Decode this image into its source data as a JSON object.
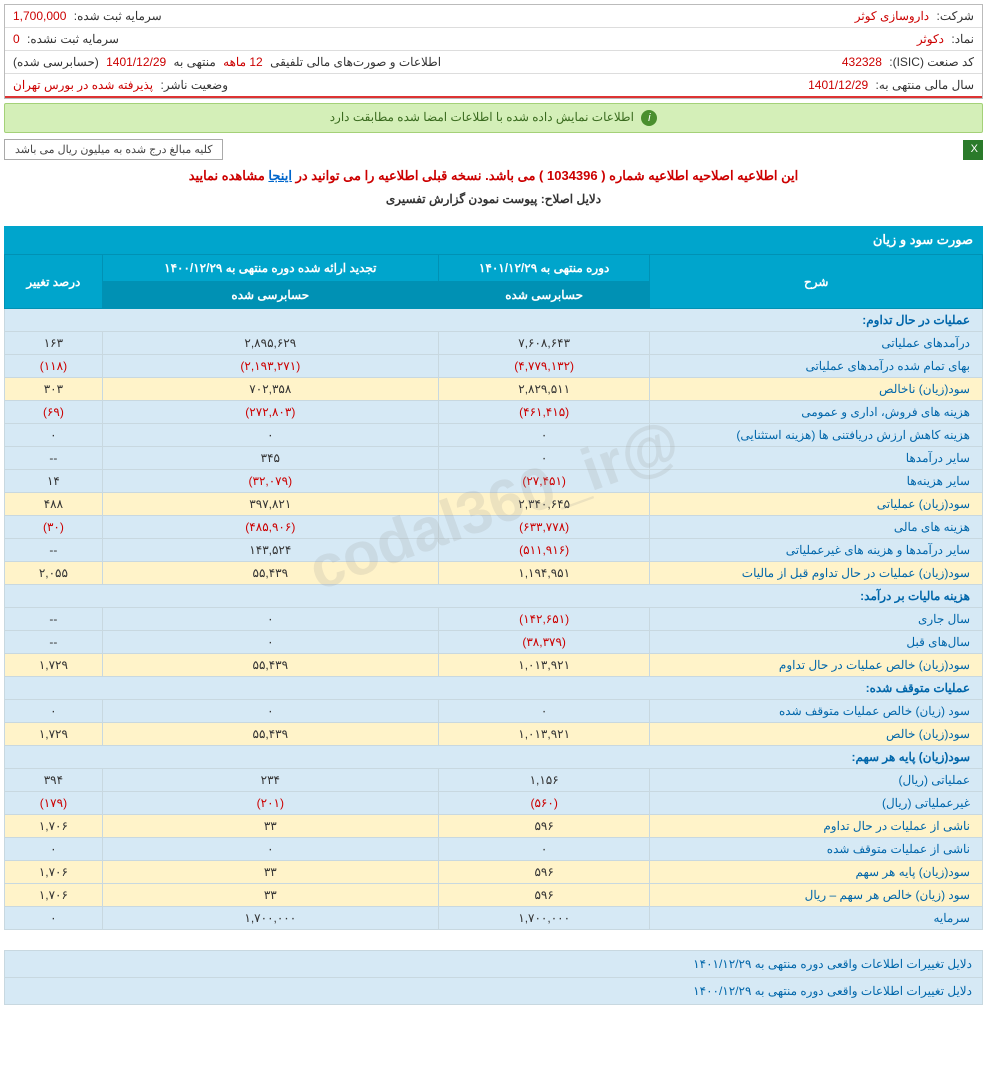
{
  "header": {
    "company_label": "شرکت:",
    "company_value": "داروسازی کوثر",
    "capital_reg_label": "سرمایه ثبت شده:",
    "capital_reg_value": "1,700,000",
    "symbol_label": "نماد:",
    "symbol_value": "دکوثر",
    "capital_unreg_label": "سرمایه ثبت نشده:",
    "capital_unreg_value": "0",
    "isic_label": "کد صنعت (ISIC):",
    "isic_value": "432328",
    "report_label": "اطلاعات و صورت‌های مالی تلفیقی",
    "report_period": "12 ماهه",
    "report_ending": "منتهی به",
    "report_date": "1401/12/29",
    "report_audit": "(حسابرسی شده)",
    "fiscal_label": "سال مالی منتهی به:",
    "fiscal_value": "1401/12/29",
    "status_label": "وضعیت ناشر:",
    "status_value": "پذیرفته شده در بورس تهران"
  },
  "banner": "اطلاعات نمایش داده شده با اطلاعات امضا شده مطابقت دارد",
  "note": "کلیه مبالغ درج شده به میلیون ریال می باشد",
  "notice": {
    "text1": "این اطلاعیه اصلاحیه اطلاعیه شماره ( 1034396 ) می باشد. نسخه قبلی اطلاعیه را می توانید در",
    "link": "اینجا",
    "text2": "مشاهده نمایید"
  },
  "sub_notice": "دلایل اصلاح: پیوست نمودن گزارش تفسیری",
  "watermark": "@codal360_ir",
  "section_title": "صورت سود و زیان",
  "columns": {
    "desc": "شرح",
    "current": "دوره منتهی به ۱۴۰۱/۱۲/۲۹",
    "prior": "تجدید ارائه شده دوره منتهی به ۱۴۰۰/۱۲/۲۹",
    "change": "درصد تغییر",
    "audited": "حسابرسی شده"
  },
  "rows": [
    {
      "type": "header",
      "desc": "عملیات در حال تداوم:"
    },
    {
      "type": "blue",
      "desc": "درآمدهای عملیاتی",
      "current": "۷,۶۰۸,۶۴۳",
      "prior": "۲,۸۹۵,۶۲۹",
      "change": "۱۶۳"
    },
    {
      "type": "blue",
      "desc": "بهای تمام شده درآمدهای عملیاتی",
      "current": "(۴,۷۷۹,۱۳۲)",
      "current_neg": true,
      "prior": "(۲,۱۹۳,۲۷۱)",
      "prior_neg": true,
      "change": "(۱۱۸)",
      "change_neg": true
    },
    {
      "type": "yellow",
      "desc": "سود(زیان) ناخالص",
      "current": "۲,۸۲۹,۵۱۱",
      "prior": "۷۰۲,۳۵۸",
      "change": "۳۰۳"
    },
    {
      "type": "blue",
      "desc": "هزینه های فروش، اداری و عمومی",
      "current": "(۴۶۱,۴۱۵)",
      "current_neg": true,
      "prior": "(۲۷۲,۸۰۳)",
      "prior_neg": true,
      "change": "(۶۹)",
      "change_neg": true
    },
    {
      "type": "blue",
      "desc": "هزینه کاهش ارزش دریافتنی ها (هزینه استثنایی)",
      "current": "۰",
      "prior": "۰",
      "change": "۰"
    },
    {
      "type": "blue",
      "desc": "سایر درآمدها",
      "current": "۰",
      "prior": "۳۴۵",
      "change": "--"
    },
    {
      "type": "blue",
      "desc": "سایر هزینه‌ها",
      "current": "(۲۷,۴۵۱)",
      "current_neg": true,
      "prior": "(۳۲,۰۷۹)",
      "prior_neg": true,
      "change": "۱۴"
    },
    {
      "type": "yellow",
      "desc": "سود(زیان) عملیاتی",
      "current": "۲,۳۴۰,۶۴۵",
      "prior": "۳۹۷,۸۲۱",
      "change": "۴۸۸"
    },
    {
      "type": "blue",
      "desc": "هزینه های مالی",
      "current": "(۶۳۳,۷۷۸)",
      "current_neg": true,
      "prior": "(۴۸۵,۹۰۶)",
      "prior_neg": true,
      "change": "(۳۰)",
      "change_neg": true
    },
    {
      "type": "blue",
      "desc": "سایر درآمدها و هزینه های غیرعملیاتی",
      "current": "(۵۱۱,۹۱۶)",
      "current_neg": true,
      "prior": "۱۴۳,۵۲۴",
      "change": "--"
    },
    {
      "type": "yellow",
      "desc": "سود(زیان) عملیات در حال تداوم قبل از مالیات",
      "current": "۱,۱۹۴,۹۵۱",
      "prior": "۵۵,۴۳۹",
      "change": "۲,۰۵۵"
    },
    {
      "type": "header",
      "desc": "هزینه مالیات بر درآمد:"
    },
    {
      "type": "blue",
      "desc": "سال جاری",
      "current": "(۱۴۲,۶۵۱)",
      "current_neg": true,
      "prior": "۰",
      "change": "--"
    },
    {
      "type": "blue",
      "desc": "سال‌های قبل",
      "current": "(۳۸,۳۷۹)",
      "current_neg": true,
      "prior": "۰",
      "change": "--"
    },
    {
      "type": "yellow",
      "desc": "سود(زیان) خالص عملیات در حال تداوم",
      "current": "۱,۰۱۳,۹۲۱",
      "prior": "۵۵,۴۳۹",
      "change": "۱,۷۲۹"
    },
    {
      "type": "header",
      "desc": "عملیات متوقف شده:"
    },
    {
      "type": "blue",
      "desc": "سود (زیان) خالص عملیات متوقف شده",
      "current": "۰",
      "prior": "۰",
      "change": "۰"
    },
    {
      "type": "yellow",
      "desc": "سود(زیان) خالص",
      "current": "۱,۰۱۳,۹۲۱",
      "prior": "۵۵,۴۳۹",
      "change": "۱,۷۲۹"
    },
    {
      "type": "header",
      "desc": "سود(زیان) پایه هر سهم:"
    },
    {
      "type": "blue",
      "desc": "عملیاتی (ریال)",
      "current": "۱,۱۵۶",
      "prior": "۲۳۴",
      "change": "۳۹۴"
    },
    {
      "type": "blue",
      "desc": "غیرعملیاتی (ریال)",
      "current": "(۵۶۰)",
      "current_neg": true,
      "prior": "(۲۰۱)",
      "prior_neg": true,
      "change": "(۱۷۹)",
      "change_neg": true
    },
    {
      "type": "yellow",
      "desc": "ناشی از عملیات در حال تداوم",
      "current": "۵۹۶",
      "prior": "۳۳",
      "change": "۱,۷۰۶"
    },
    {
      "type": "blue",
      "desc": "ناشی از عملیات متوقف شده",
      "current": "۰",
      "prior": "۰",
      "change": "۰"
    },
    {
      "type": "yellow",
      "desc": "سود(زیان) پایه هر سهم",
      "current": "۵۹۶",
      "prior": "۳۳",
      "change": "۱,۷۰۶"
    },
    {
      "type": "yellow",
      "desc": "سود (زیان) خالص هر سهم – ریال",
      "current": "۵۹۶",
      "prior": "۳۳",
      "change": "۱,۷۰۶"
    },
    {
      "type": "blue",
      "desc": "سرمایه",
      "current": "۱,۷۰۰,۰۰۰",
      "prior": "۱,۷۰۰,۰۰۰",
      "change": "۰"
    }
  ],
  "footer": {
    "row1": "دلایل تغییرات اطلاعات واقعی دوره منتهی به ۱۴۰۱/۱۲/۲۹",
    "row2": "دلایل تغییرات اطلاعات واقعی دوره منتهی به ۱۴۰۰/۱۲/۲۹"
  }
}
